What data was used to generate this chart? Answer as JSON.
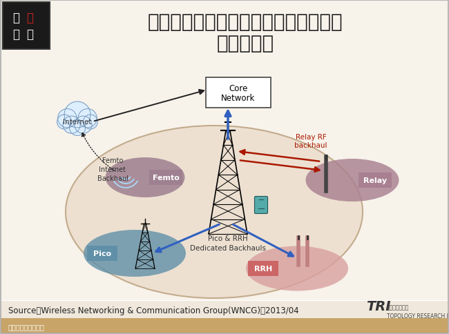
{
  "title_line1": "未來各種中繼站同時發生，帶來異質網",
  "title_line2": "路協調課題",
  "title_fontsize": 20,
  "title_color": "#1a1a1a",
  "bg_color": "#ffffff",
  "bg_texture_color": "#f0e8dc",
  "border_color": "#aaaaaa",
  "source_text": "Source：Wireless Networking & Communication Group(WNCG)；2013/04",
  "source_fontsize": 8.5,
  "bottom_bar_color": "#c8a060",
  "bottom_text": "版權所有，翻印必究",
  "bottom_text_color": "#c8a060",
  "oval_facecolor": "#ede0d0",
  "oval_edgecolor": "#c0a888",
  "femto_color": "#9e8090",
  "pico_color": "#6090a8",
  "rrh_color": "#d8a0a0",
  "relay_color": "#a88090",
  "label_fg": "#ffffff",
  "core_box_fc": "#ffffff",
  "core_box_ec": "#444444",
  "cloud_fill": "#ddeeff",
  "cloud_edge": "#7799bb",
  "arrow_dark": "#222222",
  "arrow_blue": "#3060c0",
  "arrow_red": "#aa1800",
  "relay_rf_color": "#aa1800"
}
